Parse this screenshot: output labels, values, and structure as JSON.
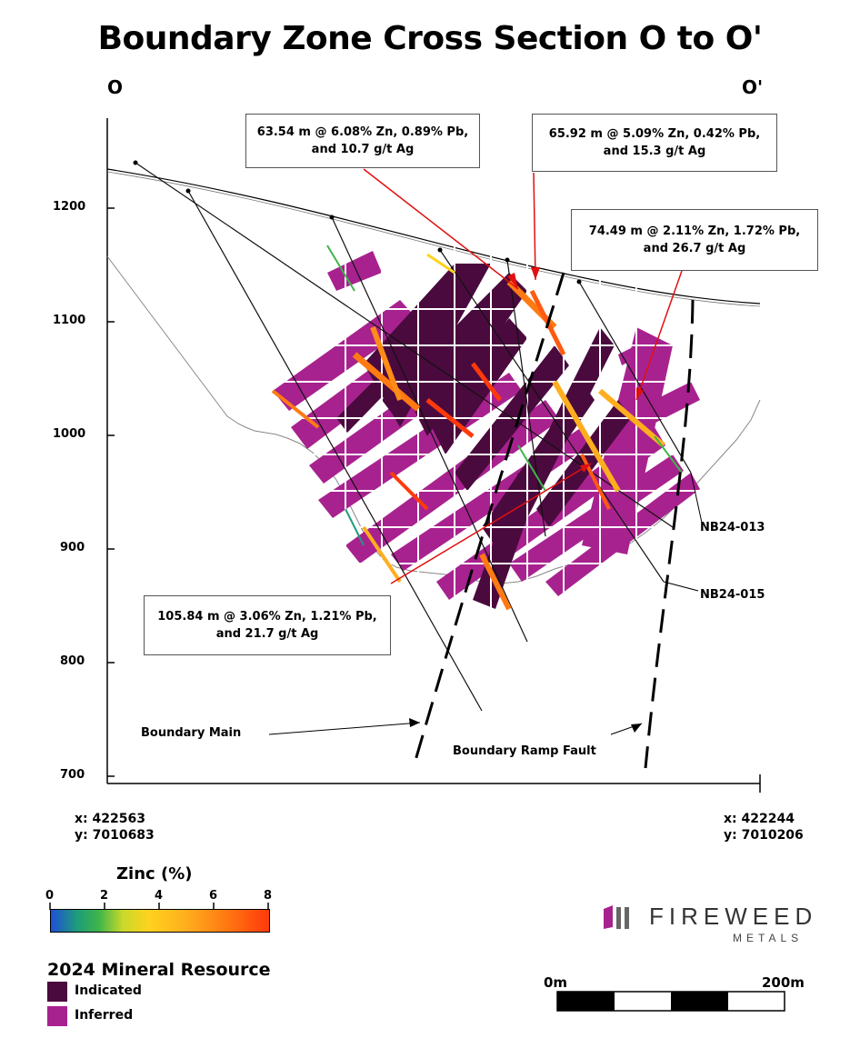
{
  "title": "Boundary Zone Cross Section O to O'",
  "section": {
    "left_label": "O",
    "right_label": "O'"
  },
  "y_axis": {
    "ticks": [
      "1200",
      "1100",
      "1000",
      "900",
      "800",
      "700"
    ]
  },
  "coords": {
    "left": {
      "x": "x: 422563",
      "y": "y: 7010683"
    },
    "right": {
      "x": "x: 422244",
      "y": "y: 7010206"
    }
  },
  "callouts": [
    {
      "line1": "63.54 m @ 6.08% Zn, 0.89% Pb,",
      "line2": "and 10.7 g/t Ag"
    },
    {
      "line1": "65.92 m @ 5.09% Zn, 0.42% Pb,",
      "line2": "and 15.3 g/t Ag"
    },
    {
      "line1": "74.49 m @ 2.11% Zn, 1.72% Pb,",
      "line2": "and 26.7 g/t Ag"
    },
    {
      "line1": "105.84 m @ 3.06% Zn, 1.21% Pb,",
      "line2": "and 21.7 g/t Ag"
    }
  ],
  "labels": {
    "boundary_main": "Boundary Main",
    "ramp_fault": "Boundary Ramp Fault",
    "hole_013": "NB24-013",
    "hole_015": "NB24-015"
  },
  "zinc_legend": {
    "title": "Zinc (%)",
    "ticks": [
      "0",
      "2",
      "4",
      "6",
      "8"
    ]
  },
  "resource_legend": {
    "title": "2024 Mineral Resource",
    "items": [
      {
        "label": "Indicated",
        "color": "#4a0a3e"
      },
      {
        "label": "Inferred",
        "color": "#a8228f"
      }
    ]
  },
  "scale_bar": {
    "start": "0m",
    "end": "200m"
  },
  "logo": {
    "name": "FIREWEED",
    "sub": "METALS"
  },
  "colors": {
    "indicated": "#4a0a3e",
    "inferred": "#a8228f",
    "callout_arrow": "#e01010"
  }
}
